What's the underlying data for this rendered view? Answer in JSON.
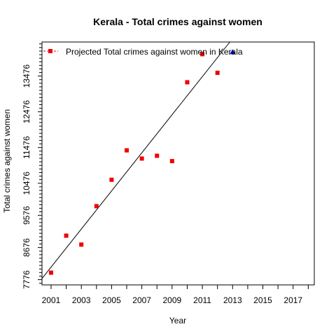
{
  "chart_data": {
    "type": "scatter",
    "title": "Kerala  -  Total crimes against women",
    "xlabel": "Year",
    "ylabel": "Total crimes against women",
    "xlim": [
      2000.4,
      2018.4
    ],
    "ylim": [
      7630,
      14430
    ],
    "x_ticks": [
      2001,
      2003,
      2005,
      2007,
      2009,
      2011,
      2013,
      2015,
      2017
    ],
    "x_minor_ticks": [
      2002,
      2004,
      2006,
      2008,
      2010,
      2012,
      2014,
      2016,
      2018
    ],
    "y_ticks": [
      7776,
      8676,
      9576,
      10476,
      11476,
      12476,
      13476
    ],
    "y_tick_labels": [
      "7776",
      "8676",
      "9576",
      "10476",
      "11476",
      "12476",
      "13476"
    ],
    "grid": false,
    "legend": {
      "position": "top-left",
      "entries": [
        "Projected  Total crimes against women  in  Kerala"
      ]
    },
    "colors": {
      "observed": "#ee0000",
      "projected": "#0000cc",
      "trend": "#000000"
    },
    "series": [
      {
        "values": [
          [
            2001,
            7973
          ],
          [
            2002,
            9009
          ],
          [
            2003,
            8759
          ],
          [
            2004,
            9834
          ],
          [
            2005,
            10574
          ],
          [
            2006,
            11397
          ],
          [
            2007,
            11168
          ],
          [
            2008,
            11245
          ],
          [
            2009,
            11096
          ],
          [
            2010,
            13303
          ],
          [
            2011,
            14089
          ],
          [
            2012,
            13568
          ]
        ]
      },
      {
        "values": [
          [
            2013,
            14149
          ]
        ]
      }
    ],
    "trend_line": {
      "intercept_at_x": 2000.4,
      "start": 7808,
      "slope": 533.3
    }
  }
}
